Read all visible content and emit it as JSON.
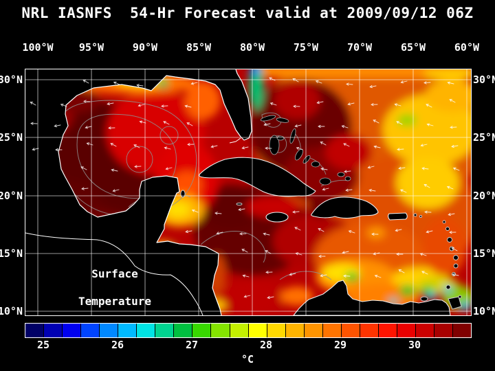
{
  "header": {
    "title": "NRL IASNFS  54-Hr Forecast valid at 2009/09/12 06Z"
  },
  "axes": {
    "lon_labels": [
      "100°W",
      "95°W",
      "90°W",
      "85°W",
      "80°W",
      "75°W",
      "70°W",
      "65°W",
      "60°W"
    ],
    "lat_labels": [
      "30°N",
      "25°N",
      "20°N",
      "15°N",
      "10°N"
    ]
  },
  "map_overlay": {
    "line1": "Surface",
    "line2": "Temperature"
  },
  "colorbar": {
    "unit": "°C",
    "ticks": [
      {
        "label": "25",
        "pct": 4.17
      },
      {
        "label": "26",
        "pct": 20.83
      },
      {
        "label": "27",
        "pct": 37.5
      },
      {
        "label": "28",
        "pct": 54.17
      },
      {
        "label": "29",
        "pct": 70.83
      },
      {
        "label": "30",
        "pct": 87.5
      }
    ],
    "colors": [
      "#000066",
      "#0000b4",
      "#0000f0",
      "#0044ff",
      "#0088ff",
      "#00baff",
      "#00e4e4",
      "#00d490",
      "#00c040",
      "#38d800",
      "#84e400",
      "#c4f000",
      "#ffff00",
      "#ffd800",
      "#ffb400",
      "#ff9400",
      "#ff7400",
      "#ff5400",
      "#ff3400",
      "#ff1400",
      "#ea0000",
      "#cc0000",
      "#a80000",
      "#800000"
    ]
  },
  "chart_data": {
    "type": "heatmap",
    "title": "NRL IASNFS 54-Hr Forecast valid at 2009/09/12 06Z",
    "variable": "Surface Temperature",
    "unit": "°C",
    "region": "Gulf of Mexico, Caribbean Sea and western North Atlantic",
    "x_axis": {
      "label": "Longitude",
      "tick_labels": [
        "100°W",
        "95°W",
        "90°W",
        "85°W",
        "80°W",
        "75°W",
        "70°W",
        "65°W",
        "60°W"
      ]
    },
    "y_axis": {
      "label": "Latitude",
      "tick_labels": [
        "30°N",
        "25°N",
        "20°N",
        "15°N",
        "10°N"
      ]
    },
    "colorbar": {
      "min_c": 24.75,
      "max_c": 30.75,
      "tick_values_c": [
        25,
        26,
        27,
        28,
        29,
        30
      ],
      "segments": 24
    },
    "field_summary": [
      {
        "area": "Gulf of Mexico interior",
        "sst_c": "30-31 dark red; Loop Current and eddies outlined by gray contours"
      },
      {
        "area": "Northern Gulf coast shelf",
        "sst_c": "27.5-29 orange/yellow filaments with small green patch"
      },
      {
        "area": "Campeche Bank north of Yucatan",
        "sst_c": "28-28.5 yellow patch"
      },
      {
        "area": "Florida Straits / SE Florida shelf",
        "sst_c": "26.5-27.5 narrow green-cyan strip with blue speck"
      },
      {
        "area": "Atlantic east of Bahamas",
        "sst_c": "30-31 dark red patch"
      },
      {
        "area": "Central Atlantic portion of domain",
        "sst_c": "28-29 orange with 27.5-28.5 yellow eddies"
      },
      {
        "area": "NW Caribbean (Cayman basin)",
        "sst_c": "30-31 dark red"
      },
      {
        "area": "Central Caribbean",
        "sst_c": "29-30 red"
      },
      {
        "area": "SE Caribbean / Venezuela-Colombia coast",
        "sst_c": "25-28.5 mottled yellow-green with cyan upwelling specks"
      },
      {
        "area": "Atlantic along northern model boundary",
        "sst_c": "28-28.5 orange band"
      }
    ],
    "overlays": [
      "white surface vector arrows (mostly westward)",
      "gray ocean-feature contour lines",
      "black land mask with white coastlines",
      "white 5-degree lat/lon grid"
    ]
  }
}
